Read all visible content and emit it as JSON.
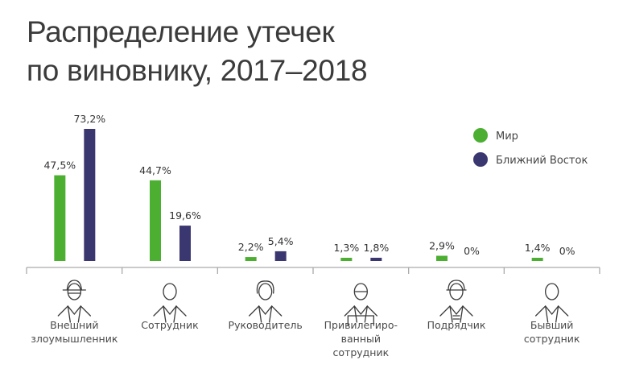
{
  "chart_data": {
    "type": "bar",
    "title_lines": [
      "Распределение утечек",
      "по виновнику, 2017–2018"
    ],
    "categories": [
      {
        "lines": [
          "Внешний",
          "злоумышленник"
        ],
        "icon": "hacker-icon"
      },
      {
        "lines": [
          "Сотрудник"
        ],
        "icon": "employee-icon"
      },
      {
        "lines": [
          "Руководитель"
        ],
        "icon": "manager-icon"
      },
      {
        "lines": [
          "Привилегиро-",
          "ванный",
          "сотрудник"
        ],
        "icon": "privileged-employee-icon"
      },
      {
        "lines": [
          "Подрядчик"
        ],
        "icon": "contractor-icon"
      },
      {
        "lines": [
          "Бывший",
          "сотрудник"
        ],
        "icon": "former-employee-icon"
      }
    ],
    "series": [
      {
        "name": "Мир",
        "color": "#4caf32",
        "values": [
          47.5,
          44.7,
          2.2,
          1.3,
          2.9,
          1.4
        ],
        "labels": [
          "47,5%",
          "44,7%",
          "2,2%",
          "1,3%",
          "2,9%",
          "1,4%"
        ]
      },
      {
        "name": "Ближний Восток",
        "color": "#3a3670",
        "values": [
          73.2,
          19.6,
          5.4,
          1.8,
          0,
          0
        ],
        "labels": [
          "73,2%",
          "19,6%",
          "5,4%",
          "1,8%",
          "0%",
          "0%"
        ]
      }
    ],
    "ylim": [
      0,
      75
    ],
    "grid": false,
    "legend": "top-right"
  }
}
